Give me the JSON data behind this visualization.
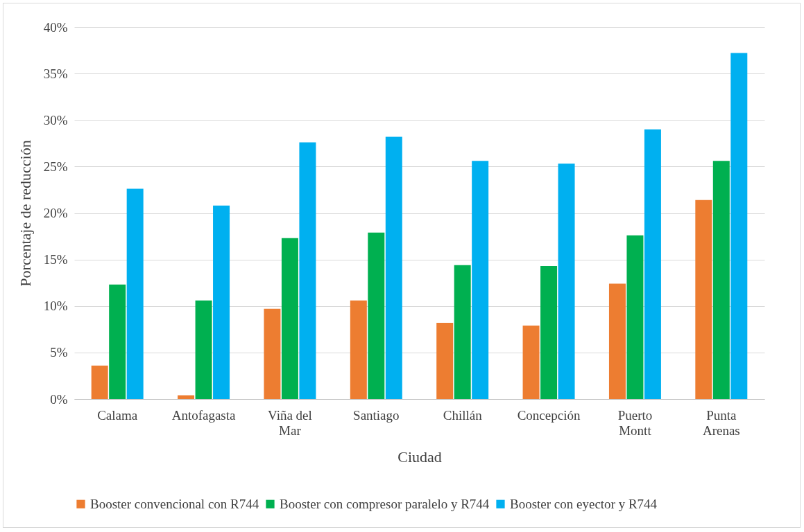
{
  "chart_data": {
    "type": "bar",
    "xlabel": "Ciudad",
    "ylabel": "Porcentaje de reducción",
    "categories": [
      "Calama",
      "Antofagasta",
      "Viña del Mar",
      "Santiago",
      "Chillán",
      "Concepción",
      "Puerto Montt",
      "Punta Arenas"
    ],
    "series": [
      {
        "name": "Booster convencional con R744",
        "color": "#ed7d31",
        "values": [
          3.6,
          0.4,
          9.7,
          10.6,
          8.2,
          7.9,
          12.4,
          21.4
        ]
      },
      {
        "name": "Booster con compresor paralelo y R744",
        "color": "#00b050",
        "values": [
          12.3,
          10.6,
          17.3,
          17.9,
          14.4,
          14.3,
          17.6,
          25.6
        ]
      },
      {
        "name": "Booster con eyector y R744",
        "color": "#00b0f0",
        "values": [
          22.6,
          20.8,
          27.6,
          28.2,
          25.6,
          25.3,
          29.0,
          37.2
        ]
      }
    ],
    "ylim": [
      0,
      40
    ],
    "yticks": [
      {
        "value": 0,
        "label": "0%"
      },
      {
        "value": 5,
        "label": "5%"
      },
      {
        "value": 10,
        "label": "10%"
      },
      {
        "value": 15,
        "label": "15%"
      },
      {
        "value": 20,
        "label": "20%"
      },
      {
        "value": 25,
        "label": "25%"
      },
      {
        "value": 30,
        "label": "30%"
      },
      {
        "value": 35,
        "label": "35%"
      },
      {
        "value": 40,
        "label": "40%"
      }
    ],
    "grid": "y",
    "legend": "bottom"
  }
}
